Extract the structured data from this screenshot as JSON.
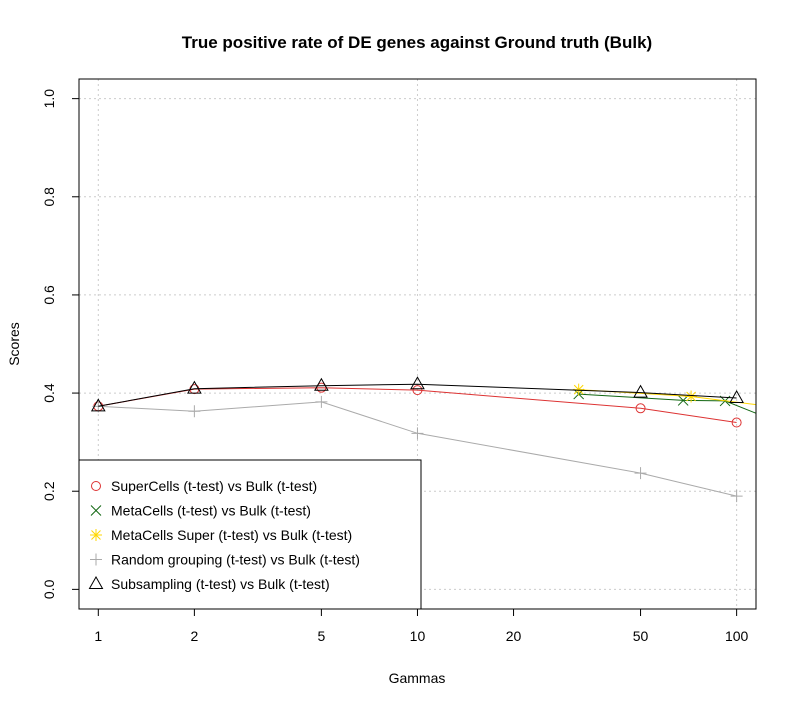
{
  "chart_data": {
    "type": "line",
    "title": "True positive rate of DE genes against Ground truth (Bulk)",
    "xlabel": "Gammas",
    "ylabel": "Scores",
    "x_scale": "log",
    "xlim": [
      0.87,
      115
    ],
    "ylim": [
      -0.04,
      1.04
    ],
    "x_ticks": [
      1,
      2,
      5,
      10,
      20,
      50,
      100
    ],
    "x_tick_labels": [
      "1",
      "2",
      "5",
      "10",
      "20",
      "50",
      "100"
    ],
    "y_ticks": [
      0,
      0.2,
      0.4,
      0.6,
      0.8,
      1.0
    ],
    "y_tick_labels": [
      "0.0",
      "0.2",
      "0.4",
      "0.6",
      "0.8",
      "1.0"
    ],
    "grid": true,
    "legend_position": "bottom-left",
    "series": [
      {
        "name": "SuperCells (t-test) vs Bulk (t-test)",
        "color": "#dd3333",
        "marker": "circle",
        "x": [
          1,
          2,
          5,
          10,
          50,
          100
        ],
        "y": [
          0.373,
          0.408,
          0.411,
          0.406,
          0.369,
          0.34
        ]
      },
      {
        "name": "MetaCells (t-test) vs Bulk (t-test)",
        "color": "#116611",
        "marker": "cross",
        "x": [
          32,
          68,
          92,
          120
        ],
        "y": [
          0.398,
          0.385,
          0.384,
          0.354
        ]
      },
      {
        "name": "MetaCells Super (t-test) vs Bulk (t-test)",
        "color": "#ffd700",
        "marker": "asterisk",
        "x": [
          32,
          72,
          120
        ],
        "y": [
          0.407,
          0.393,
          0.375
        ]
      },
      {
        "name": "Random grouping (t-test) vs Bulk (t-test)",
        "color": "#aaaaaa",
        "marker": "plus",
        "x": [
          1,
          2,
          5,
          10,
          50,
          100
        ],
        "y": [
          0.373,
          0.363,
          0.382,
          0.318,
          0.237,
          0.19
        ]
      },
      {
        "name": "Subsampling (t-test) vs Bulk (t-test)",
        "color": "#000000",
        "marker": "triangle",
        "x": [
          1,
          2,
          5,
          10,
          50,
          100
        ],
        "y": [
          0.373,
          0.409,
          0.415,
          0.418,
          0.401,
          0.39
        ]
      }
    ]
  }
}
